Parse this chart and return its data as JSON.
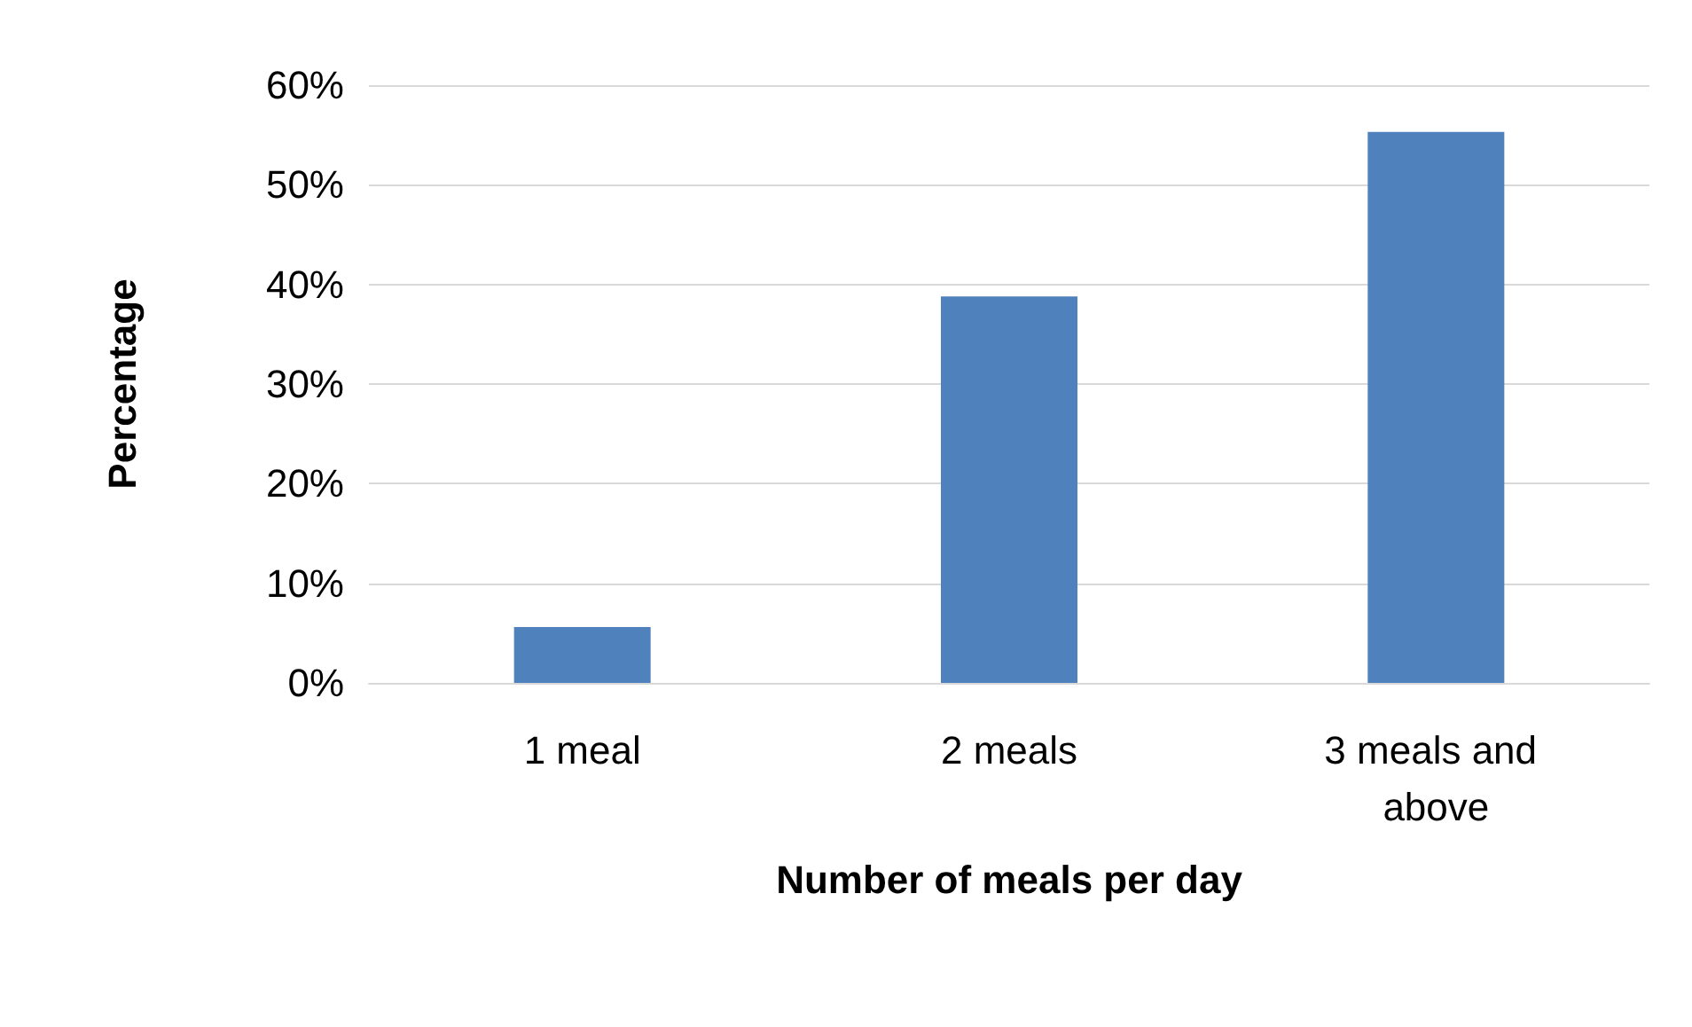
{
  "chart_data": {
    "type": "bar",
    "xlabel": "Number of meals per day",
    "ylabel": "Percentage",
    "categories": [
      "1 meal",
      "2 meals",
      "3 meals and above"
    ],
    "values": [
      5.6,
      38.8,
      55.3
    ],
    "color": "#4f81bd",
    "ylim": [
      0,
      60
    ],
    "yticks": [
      {
        "value": 0,
        "label": "0%"
      },
      {
        "value": 10,
        "label": "10%"
      },
      {
        "value": 20,
        "label": "20%"
      },
      {
        "value": 30,
        "label": "30%"
      },
      {
        "value": 40,
        "label": "40%"
      },
      {
        "value": 50,
        "label": "50%"
      },
      {
        "value": 60,
        "label": "60%"
      }
    ],
    "grid": "y"
  }
}
